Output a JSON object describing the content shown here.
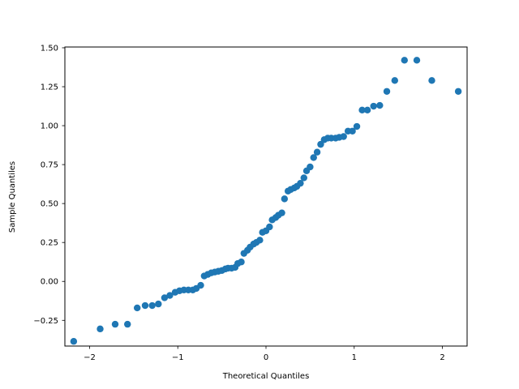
{
  "chart_data": {
    "type": "scatter",
    "title": "",
    "xlabel": "Theoretical Quantiles",
    "ylabel": "Sample Quantiles",
    "xlim": [
      -2.28,
      2.28
    ],
    "ylim": [
      -0.415,
      1.505
    ],
    "xticks": [
      -2,
      -1,
      0,
      1,
      2
    ],
    "xtick_labels": [
      "−2",
      "−1",
      "0",
      "1",
      "2"
    ],
    "yticks": [
      -0.25,
      0.0,
      0.25,
      0.5,
      0.75,
      1.0,
      1.25,
      1.5
    ],
    "ytick_labels": [
      "−0.25",
      "0.00",
      "0.25",
      "0.50",
      "0.75",
      "1.00",
      "1.25",
      "1.50"
    ],
    "grid": false,
    "marker_color": "#1f77b4",
    "series": [
      {
        "name": "sample",
        "x": [
          -2.18,
          -1.88,
          -1.71,
          -1.57,
          -1.46,
          -1.37,
          -1.29,
          -1.22,
          -1.15,
          -1.09,
          -1.03,
          -0.98,
          -0.93,
          -0.88,
          -0.83,
          -0.79,
          -0.74,
          -0.7,
          -0.66,
          -0.62,
          -0.58,
          -0.54,
          -0.5,
          -0.46,
          -0.43,
          -0.39,
          -0.35,
          -0.32,
          -0.28,
          -0.25,
          -0.21,
          -0.18,
          -0.14,
          -0.11,
          -0.07,
          -0.04,
          0.0,
          0.04,
          0.07,
          0.11,
          0.14,
          0.18,
          0.21,
          0.25,
          0.28,
          0.32,
          0.35,
          0.39,
          0.43,
          0.46,
          0.5,
          0.54,
          0.58,
          0.62,
          0.66,
          0.7,
          0.74,
          0.79,
          0.83,
          0.88,
          0.93,
          0.98,
          1.03,
          1.09,
          1.15,
          1.22,
          1.29,
          1.37,
          1.46,
          1.57,
          1.71,
          1.88,
          2.18
        ],
        "y": [
          -0.385,
          -0.305,
          -0.275,
          -0.275,
          -0.17,
          -0.155,
          -0.155,
          -0.145,
          -0.105,
          -0.09,
          -0.07,
          -0.06,
          -0.055,
          -0.055,
          -0.055,
          -0.045,
          -0.025,
          0.035,
          0.045,
          0.055,
          0.06,
          0.065,
          0.07,
          0.08,
          0.085,
          0.085,
          0.09,
          0.115,
          0.125,
          0.18,
          0.2,
          0.22,
          0.24,
          0.25,
          0.265,
          0.315,
          0.325,
          0.35,
          0.395,
          0.41,
          0.425,
          0.44,
          0.53,
          0.58,
          0.59,
          0.6,
          0.61,
          0.63,
          0.665,
          0.71,
          0.735,
          0.795,
          0.83,
          0.88,
          0.91,
          0.92,
          0.92,
          0.92,
          0.925,
          0.93,
          0.965,
          0.965,
          0.995,
          1.1,
          1.1,
          1.125,
          1.13,
          1.22,
          1.29,
          1.42,
          1.42,
          1.29,
          1.22
        ]
      }
    ]
  }
}
